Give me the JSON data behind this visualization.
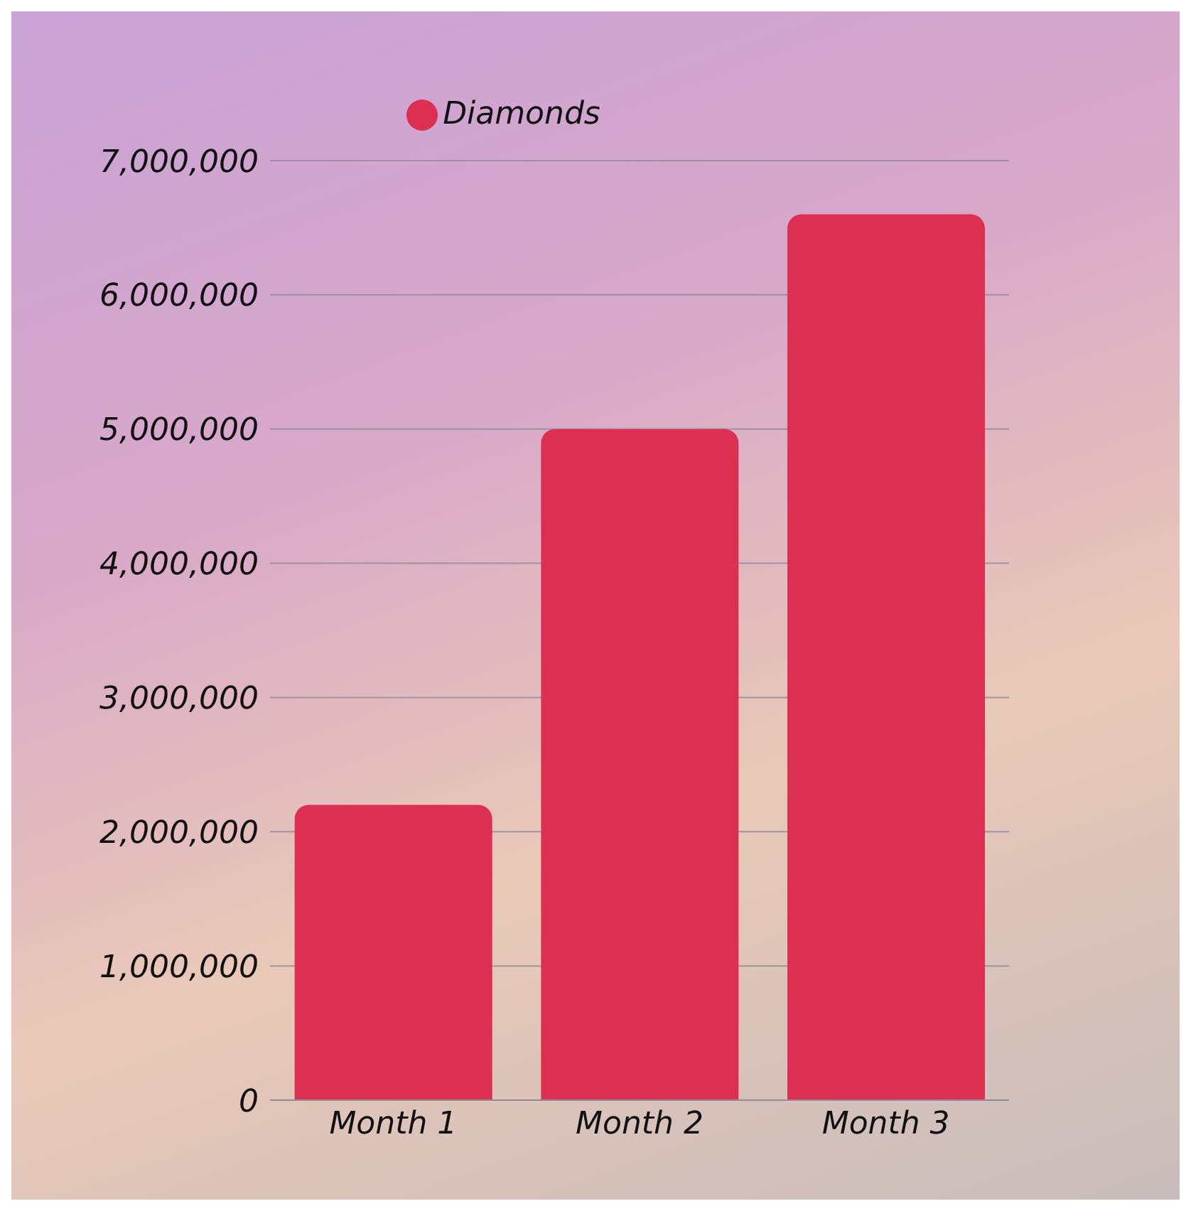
{
  "chart_data": {
    "type": "bar",
    "categories": [
      "Month 1",
      "Month 2",
      "Month 3"
    ],
    "series": [
      {
        "name": "Diamonds",
        "color": "#dc2f52",
        "values": [
          2200000,
          5000000,
          6600000
        ]
      }
    ],
    "ylim": [
      0,
      7000000
    ],
    "yticks": [
      0,
      {
        "value": 1000000,
        "label": "1,000,000"
      },
      {
        "value": 2000000,
        "label": "2,000,000"
      },
      {
        "value": 3000000,
        "label": "3,000,000"
      },
      {
        "value": 4000000,
        "label": "4,000,000"
      },
      {
        "value": 5000000,
        "label": "5,000,000"
      },
      {
        "value": 6000000,
        "label": "6,000,000"
      },
      {
        "value": 7000000,
        "label": "7,000,000"
      }
    ],
    "grid": "y",
    "legend": "top"
  }
}
